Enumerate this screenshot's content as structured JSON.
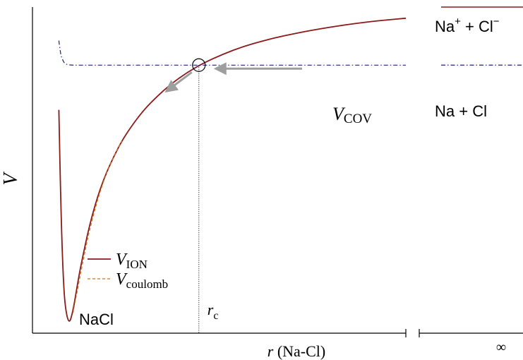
{
  "chart_data": {
    "type": "line",
    "title": "",
    "xlabel": "r (Na-Cl)",
    "xlabel_parts": {
      "italic": "r",
      "rest": " (Na-Cl)"
    },
    "ylabel": "V",
    "x_infinity_label": "∞",
    "grid": false,
    "xlim": [
      0.8,
      10
    ],
    "ylim": [
      -6,
      1.3
    ],
    "legend": {
      "placement": "bottom-left",
      "entries": [
        {
          "id": "vion",
          "main": "V",
          "sub": "ION",
          "style": "solid",
          "color": "#8b1a1a"
        },
        {
          "id": "vcoulomb",
          "main": "V",
          "sub": "coulomb",
          "style": "dashed",
          "color": "#c8781e"
        }
      ]
    },
    "series": [
      {
        "id": "vion",
        "label_main": "V",
        "label_sub": "ION",
        "color": "#8b1a1a",
        "style": "solid",
        "x": [
          1.45,
          1.5,
          1.55,
          1.6,
          1.7,
          1.8,
          1.9,
          2.0,
          2.2,
          2.4,
          2.6,
          2.8,
          3.0,
          3.2,
          3.5,
          3.8,
          4.2,
          4.6,
          5.0,
          5.5,
          6.0,
          6.5,
          7.0,
          7.5,
          8.0,
          8.5,
          9.0,
          9.5,
          10.0
        ],
        "y": [
          -1.0,
          -3.2,
          -4.6,
          -5.4,
          -5.82,
          -5.5,
          -4.95,
          -4.45,
          -3.6,
          -2.95,
          -2.45,
          -2.05,
          -1.7,
          -1.42,
          -1.05,
          -0.76,
          -0.43,
          -0.17,
          0.04,
          0.25,
          0.42,
          0.55,
          0.66,
          0.75,
          0.83,
          0.9,
          0.96,
          1.01,
          1.05
        ]
      },
      {
        "id": "vcoulomb",
        "label_main": "V",
        "label_sub": "coulomb",
        "color": "#c8781e",
        "style": "dashed",
        "x": [
          1.8,
          1.85,
          1.9,
          2.0,
          2.1,
          2.2,
          2.4,
          2.6,
          2.8,
          3.0
        ],
        "y": [
          -5.55,
          -5.3,
          -5.08,
          -4.6,
          -4.15,
          -3.72,
          -3.02,
          -2.47,
          -2.05,
          -1.7
        ]
      },
      {
        "id": "vcov",
        "label_main": "V",
        "label_sub": "COV",
        "color": "#1a237e",
        "style": "dashdot",
        "x": [
          1.45,
          1.48,
          1.5,
          1.55,
          1.6,
          1.7,
          1.8,
          2.0,
          2.5,
          3.0,
          4.0,
          5.0,
          6.0,
          8.0,
          10.0
        ],
        "y": [
          0.55,
          0.35,
          0.22,
          0.1,
          0.03,
          0.005,
          0.0,
          0.0,
          0.0,
          0.0,
          0.0,
          0.0,
          0.0,
          0.0,
          0.0
        ]
      }
    ],
    "asymptotes": [
      {
        "id": "ionic-limit",
        "label_main": "Na",
        "label_sup1": "+",
        "label_mid": " + Cl",
        "label_sup2": "−",
        "y": 1.3,
        "color": "#8b1a1a",
        "style": "solid"
      },
      {
        "id": "covalent-limit",
        "label_main": "Na + Cl",
        "y": 0.0,
        "color": "#1a237e",
        "style": "dashdot"
      }
    ],
    "annotations": {
      "crossing": {
        "label_main": "r",
        "label_sub": "c",
        "x": 4.9,
        "y": 0.0
      },
      "minimum_label": "NaCl",
      "vcov_label_main": "V",
      "vcov_label_sub": "COV"
    }
  }
}
